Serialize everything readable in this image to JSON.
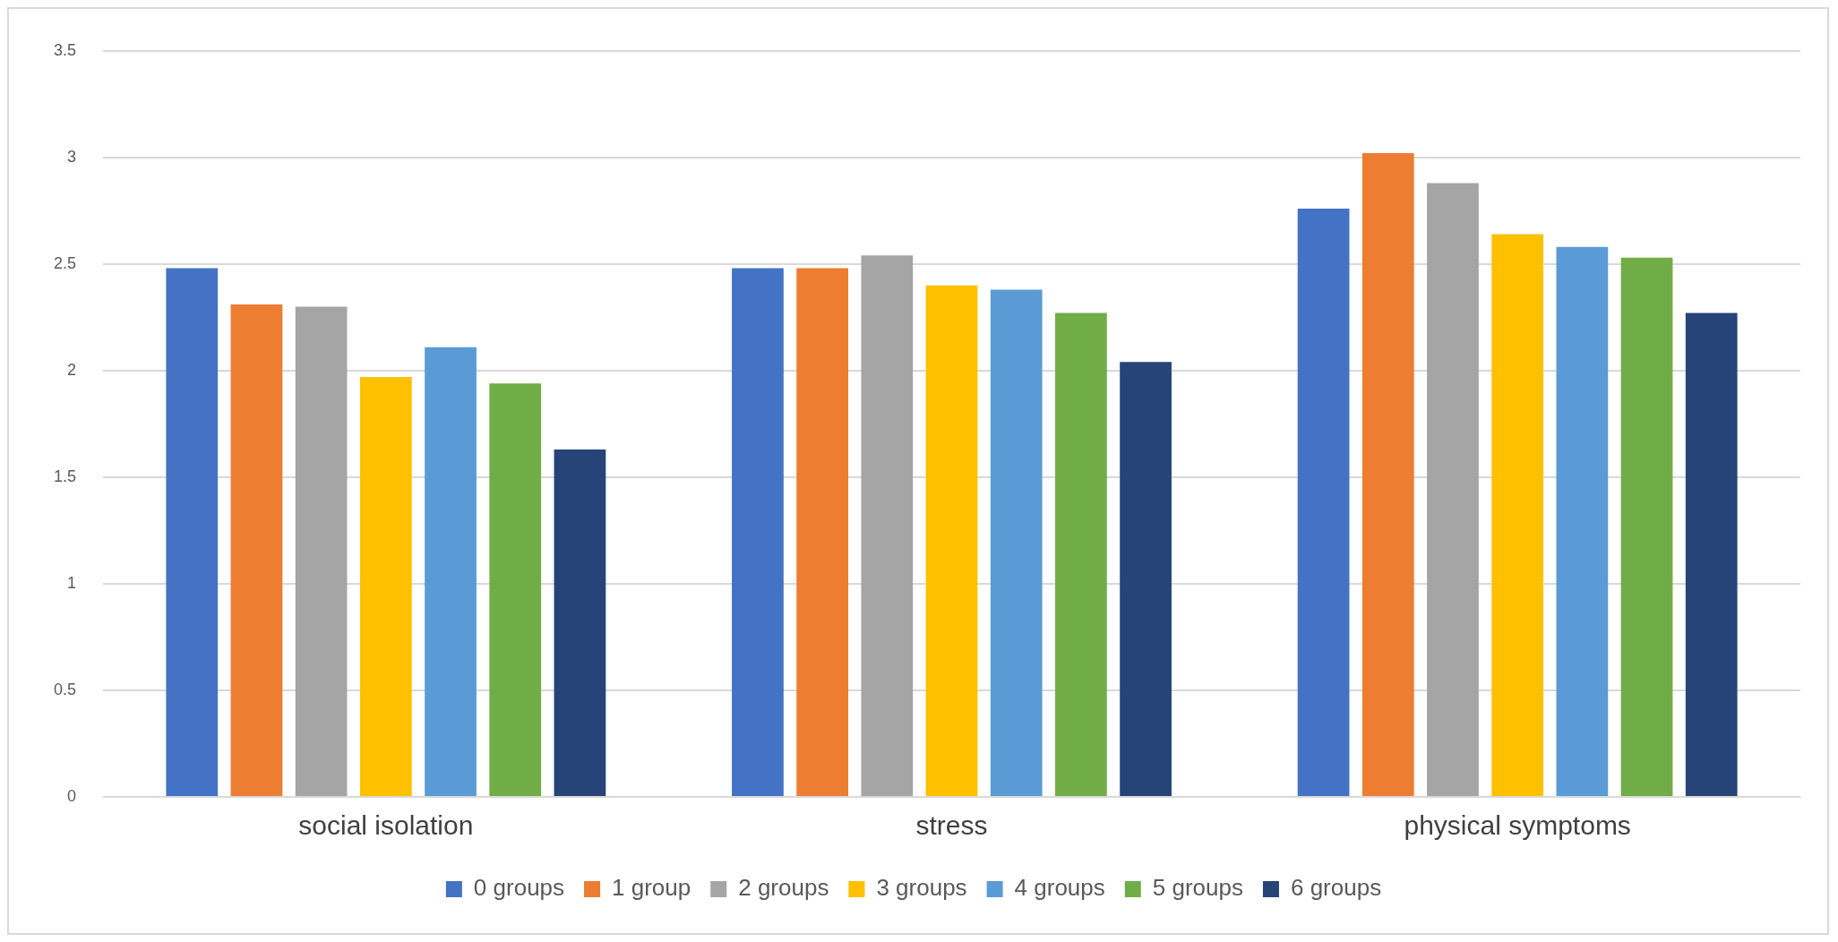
{
  "chart_data": {
    "type": "bar",
    "categories": [
      "social isolation",
      "stress",
      "physical symptoms"
    ],
    "series": [
      {
        "name": "0 groups",
        "color": "#4472c4",
        "values": [
          2.48,
          2.48,
          2.76
        ]
      },
      {
        "name": "1 group",
        "color": "#ed7d31",
        "values": [
          2.31,
          2.48,
          3.02
        ]
      },
      {
        "name": "2 groups",
        "color": "#a5a5a5",
        "values": [
          2.3,
          2.54,
          2.88
        ]
      },
      {
        "name": "3 groups",
        "color": "#ffc000",
        "values": [
          1.97,
          2.4,
          2.64
        ]
      },
      {
        "name": "4 groups",
        "color": "#5b9bd5",
        "values": [
          2.11,
          2.38,
          2.58
        ]
      },
      {
        "name": "5 groups",
        "color": "#70ad47",
        "values": [
          1.94,
          2.27,
          2.53
        ]
      },
      {
        "name": "6 groups",
        "color": "#264478",
        "values": [
          1.63,
          2.04,
          2.27
        ]
      }
    ],
    "ylim": [
      0,
      3.5
    ],
    "yticks": [
      0,
      0.5,
      1,
      1.5,
      2,
      2.5,
      3,
      3.5
    ],
    "grid": "y",
    "legend": "bottom"
  }
}
